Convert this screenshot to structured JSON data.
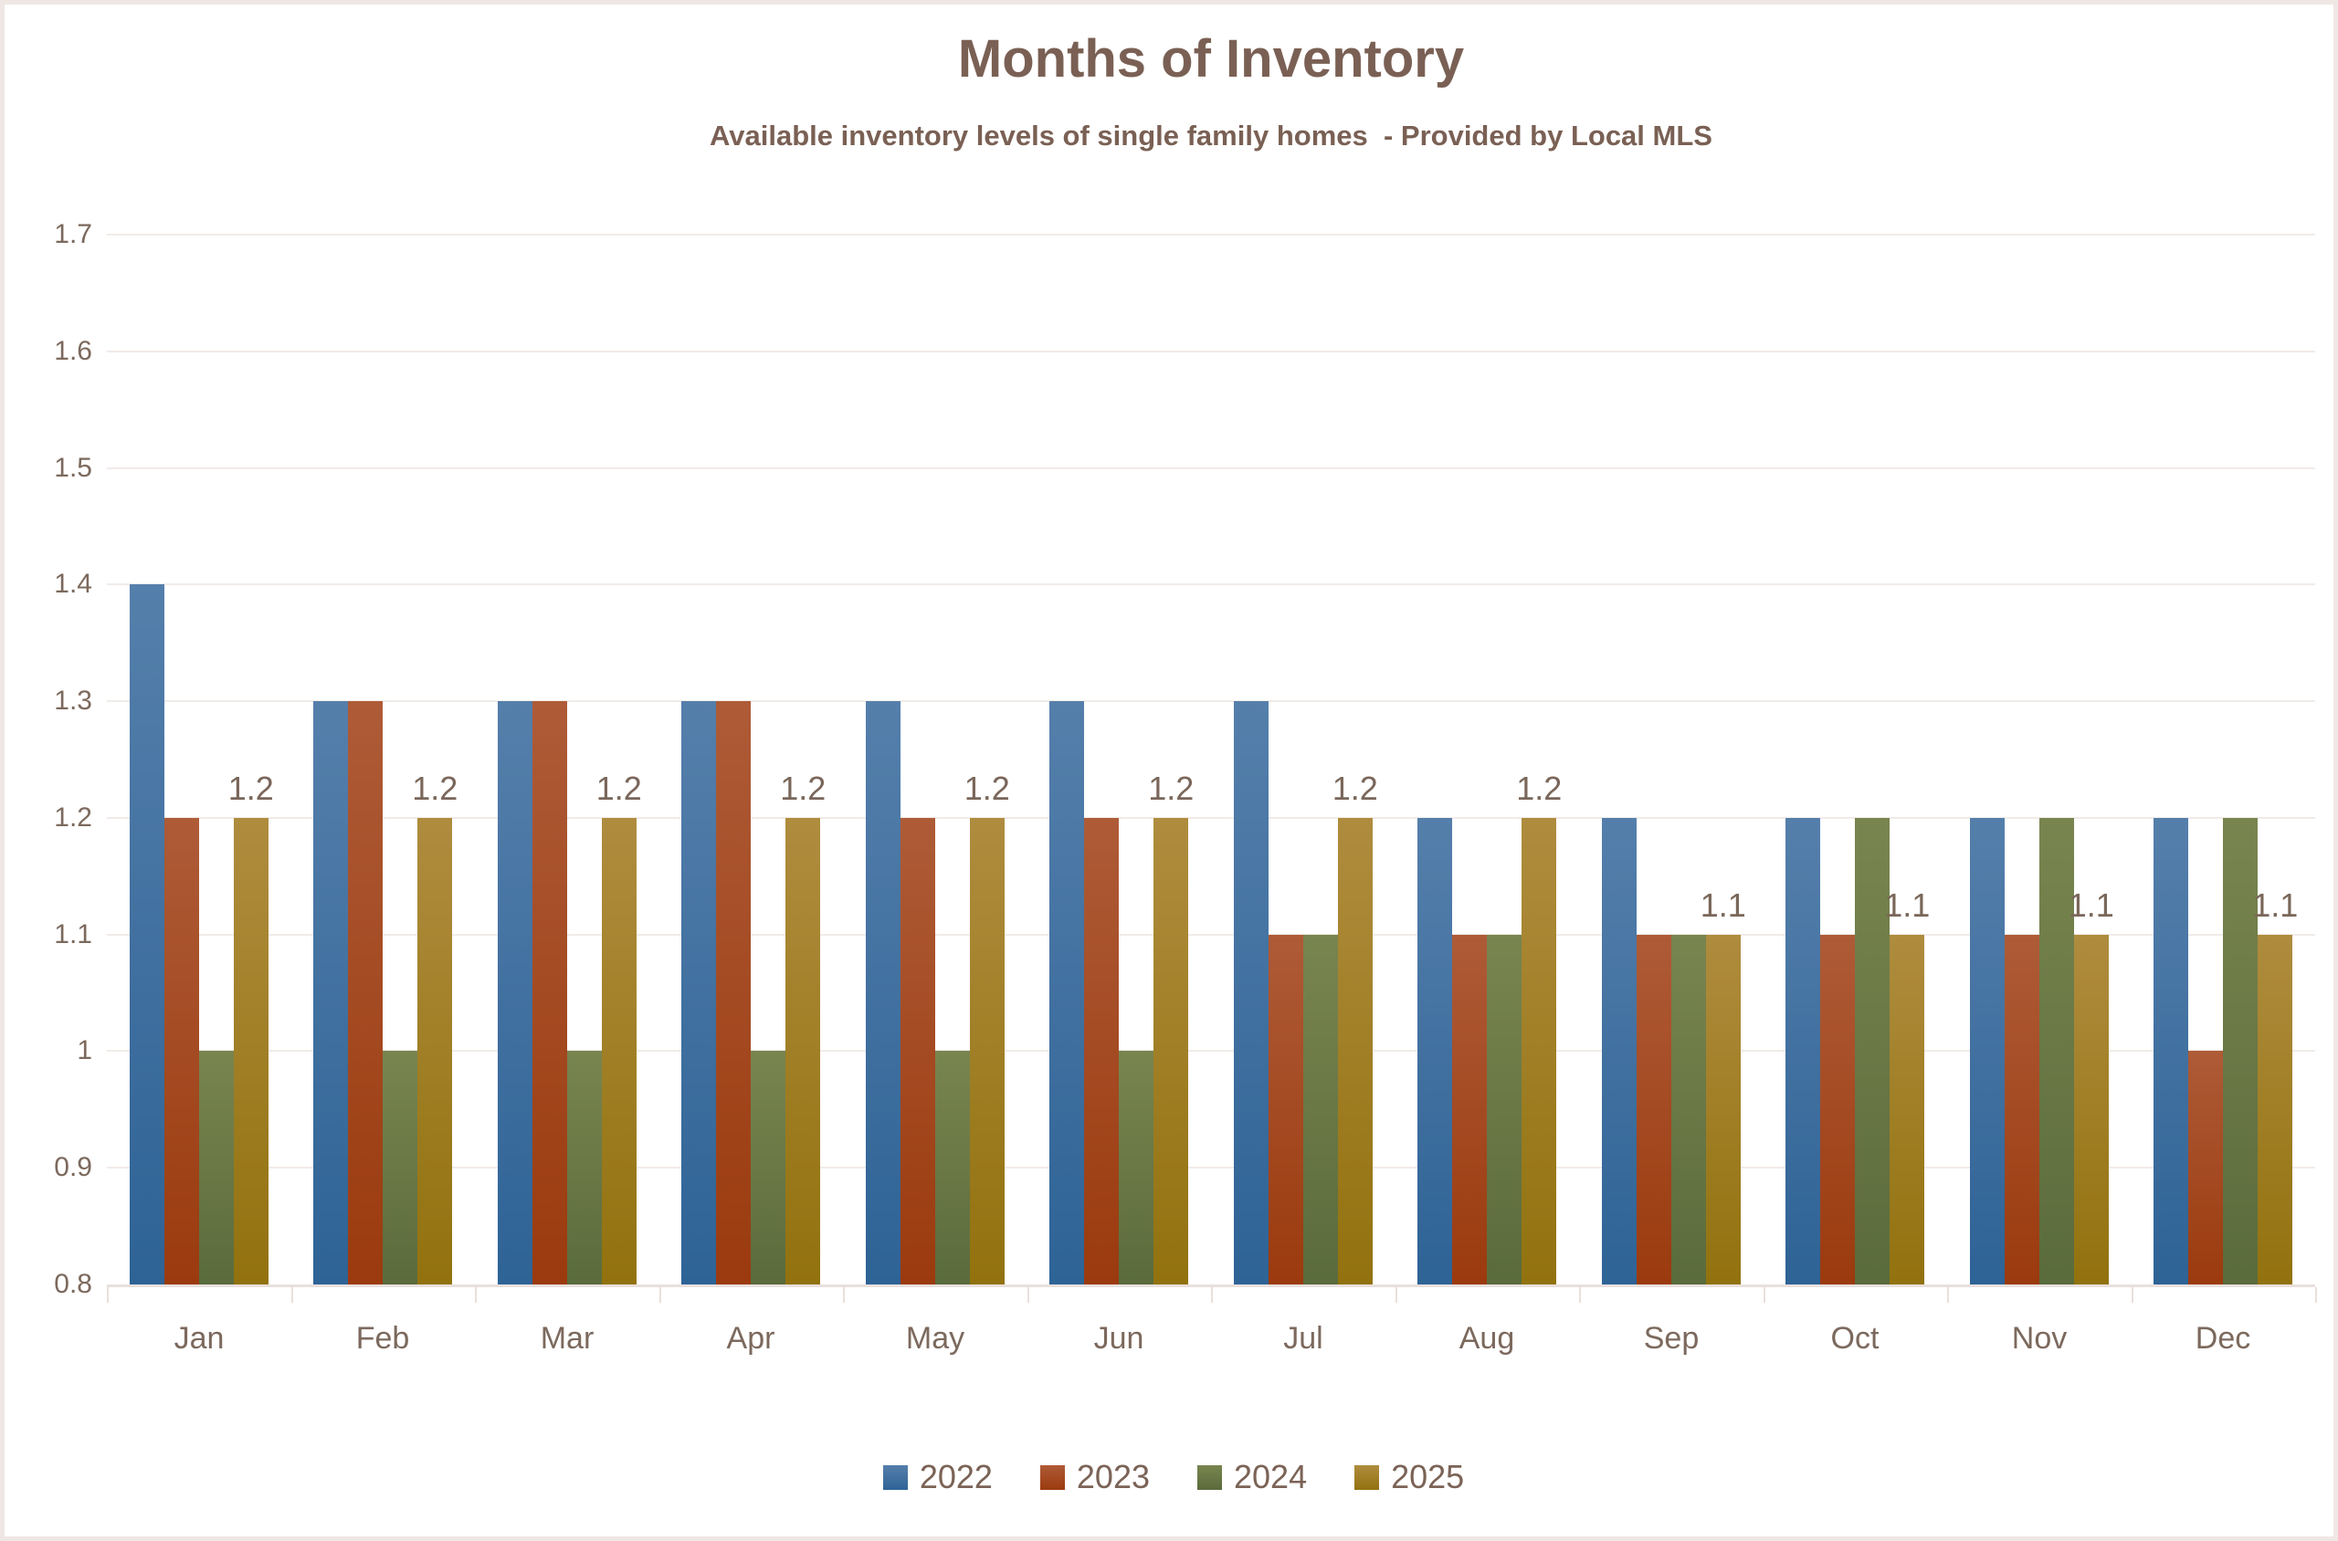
{
  "header": {
    "title": "Months of Inventory",
    "subtitle": "Available inventory levels of single family homes  - Provided by Local MLS"
  },
  "chart_data": {
    "type": "bar",
    "title": "Months of Inventory",
    "subtitle": "Available inventory levels of single family homes  - Provided by Local MLS",
    "categories": [
      "Jan",
      "Feb",
      "Mar",
      "Apr",
      "May",
      "Jun",
      "Jul",
      "Aug",
      "Sep",
      "Oct",
      "Nov",
      "Dec"
    ],
    "series": [
      {
        "name": "2022",
        "values": [
          1.4,
          1.3,
          1.3,
          1.3,
          1.3,
          1.3,
          1.3,
          1.2,
          1.2,
          1.2,
          1.2,
          1.2
        ],
        "color_top": "#557fab",
        "color_bottom": "#2e6396"
      },
      {
        "name": "2023",
        "values": [
          1.2,
          1.3,
          1.3,
          1.3,
          1.2,
          1.2,
          1.1,
          1.1,
          1.1,
          1.1,
          1.1,
          1.0
        ],
        "color_top": "#ae5b37",
        "color_bottom": "#9b3a0e"
      },
      {
        "name": "2024",
        "values": [
          1.0,
          1.0,
          1.0,
          1.0,
          1.0,
          1.0,
          1.1,
          1.1,
          1.1,
          1.2,
          1.2,
          1.2
        ],
        "color_top": "#79854f",
        "color_bottom": "#5a6b3c"
      },
      {
        "name": "2025",
        "values": [
          1.2,
          1.2,
          1.2,
          1.2,
          1.2,
          1.2,
          1.2,
          1.2,
          1.1,
          1.1,
          1.1,
          1.1
        ],
        "color_top": "#af8c3e",
        "color_bottom": "#92720e"
      }
    ],
    "data_labels": {
      "series": "2025",
      "values": [
        "1.2",
        "1.2",
        "1.2",
        "1.2",
        "1.2",
        "1.2",
        "1.2",
        "1.2",
        "1.1",
        "1.1",
        "1.1",
        "1.1"
      ]
    },
    "y_axis": {
      "min": 0.8,
      "max": 1.7,
      "step": 0.1,
      "tick_labels": [
        "1.7",
        "1.6",
        "1.5",
        "1.4",
        "1.3",
        "1.2",
        "1.1",
        "1",
        "0.9",
        "0.8"
      ]
    },
    "x_axis": {
      "label": ""
    },
    "grid": true,
    "legend_position": "bottom",
    "legend_entries": [
      "2022",
      "2023",
      "2024",
      "2025"
    ],
    "colors": {
      "title_text": "#7a6054",
      "axis_text": "#7c695d",
      "data_label_text": "#7a675a",
      "gridline": "#f1ebe8",
      "axis_line": "#e8e0dd",
      "series_2022": "#3973a4",
      "series_2023": "#ac4b12",
      "series_2024": "#6f7c47",
      "series_2025": "#a98513"
    }
  }
}
